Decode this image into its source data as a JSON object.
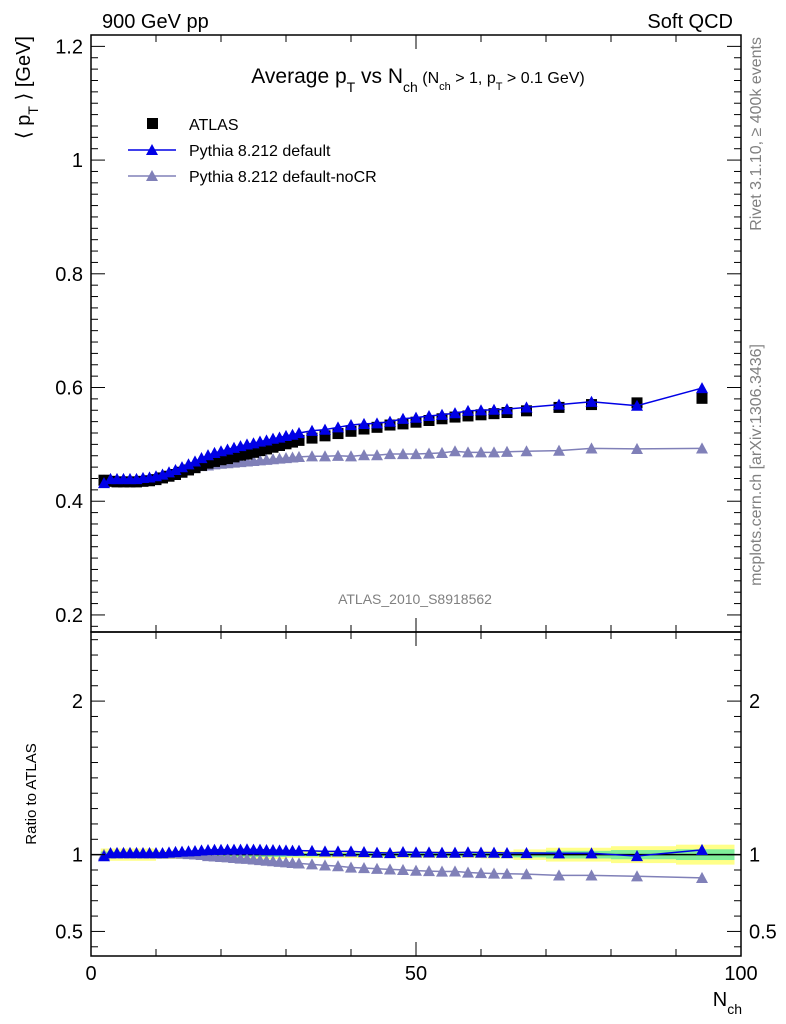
{
  "header": {
    "energy_label": "900 GeV pp",
    "process_label": "Soft QCD"
  },
  "side_labels": {
    "rivet": "Rivet 3.1.10, ≥ 400k events",
    "mcplots": "mcplots.cern.ch [arXiv:1306.3436]"
  },
  "colors": {
    "atlas": "#000000",
    "default": "#0000e6",
    "nocr": "#8080b8",
    "band_inner": "#80ee99",
    "band_outer": "#ffff88"
  },
  "chart_data": [
    {
      "type": "scatter",
      "title_parts": {
        "base": "Average p",
        "sub1": "T",
        "mid": " vs N",
        "sub2": "ch",
        "cond_a": " (N",
        "cond_sub_a": "ch",
        "cond_b": " > 1, p",
        "cond_sub_b": "T",
        "cond_c": " > 0.1 GeV)"
      },
      "ylabel": "⟨ p_T ⟩ [GeV]",
      "watermark": "ATLAS_2010_S8918562",
      "xlim": [
        0,
        100
      ],
      "ylim": [
        0.17,
        1.22
      ],
      "yticks": [
        0.2,
        0.4,
        0.6,
        0.8,
        1,
        1.2
      ],
      "ytick_labels": [
        "0.2",
        "0.4",
        "0.6",
        "0.8",
        "1",
        "1.2"
      ],
      "legend_position": "top-left",
      "series": [
        {
          "name": "ATLAS",
          "marker": "square",
          "x": [
            2,
            3,
            4,
            5,
            6,
            7,
            8,
            9,
            10,
            11,
            12,
            13,
            14,
            15,
            16,
            17,
            18,
            19,
            20,
            21,
            22,
            23,
            24,
            25,
            26,
            27,
            28,
            29,
            30,
            31,
            32,
            34,
            36,
            38,
            40,
            42,
            44,
            46,
            48,
            50,
            52,
            54,
            56,
            58,
            60,
            62,
            64,
            67,
            72,
            77,
            84,
            94
          ],
          "y": [
            0.437,
            0.435,
            0.434,
            0.434,
            0.434,
            0.434,
            0.435,
            0.436,
            0.438,
            0.441,
            0.444,
            0.447,
            0.451,
            0.455,
            0.459,
            0.463,
            0.467,
            0.47,
            0.473,
            0.475,
            0.478,
            0.481,
            0.483,
            0.486,
            0.489,
            0.492,
            0.495,
            0.498,
            0.501,
            0.504,
            0.507,
            0.511,
            0.515,
            0.519,
            0.523,
            0.527,
            0.53,
            0.534,
            0.536,
            0.539,
            0.542,
            0.545,
            0.548,
            0.55,
            0.552,
            0.554,
            0.556,
            0.559,
            0.565,
            0.57,
            0.573,
            0.581
          ]
        },
        {
          "name": "Pythia 8.212 default",
          "marker": "triangle",
          "x": [
            2,
            3,
            4,
            5,
            6,
            7,
            8,
            9,
            10,
            11,
            12,
            13,
            14,
            15,
            16,
            17,
            18,
            19,
            20,
            21,
            22,
            23,
            24,
            25,
            26,
            27,
            28,
            29,
            30,
            31,
            32,
            34,
            36,
            38,
            40,
            42,
            44,
            46,
            48,
            50,
            52,
            54,
            56,
            58,
            60,
            62,
            64,
            67,
            72,
            77,
            84,
            94
          ],
          "y": [
            0.432,
            0.439,
            0.439,
            0.439,
            0.439,
            0.439,
            0.441,
            0.442,
            0.444,
            0.447,
            0.451,
            0.455,
            0.46,
            0.465,
            0.47,
            0.476,
            0.481,
            0.485,
            0.488,
            0.491,
            0.494,
            0.497,
            0.5,
            0.502,
            0.505,
            0.507,
            0.51,
            0.512,
            0.515,
            0.517,
            0.52,
            0.524,
            0.526,
            0.53,
            0.534,
            0.536,
            0.537,
            0.54,
            0.545,
            0.547,
            0.55,
            0.552,
            0.555,
            0.559,
            0.56,
            0.561,
            0.562,
            0.565,
            0.57,
            0.575,
            0.568,
            0.599
          ]
        },
        {
          "name": "Pythia 8.212 default-noCR",
          "marker": "triangle",
          "x": [
            2,
            3,
            4,
            5,
            6,
            7,
            8,
            9,
            10,
            11,
            12,
            13,
            14,
            15,
            16,
            17,
            18,
            19,
            20,
            21,
            22,
            23,
            24,
            25,
            26,
            27,
            28,
            29,
            30,
            31,
            32,
            34,
            36,
            38,
            40,
            42,
            44,
            46,
            48,
            50,
            52,
            54,
            56,
            58,
            60,
            62,
            64,
            67,
            72,
            77,
            84,
            94
          ],
          "y": [
            0.437,
            0.439,
            0.439,
            0.439,
            0.439,
            0.439,
            0.44,
            0.441,
            0.443,
            0.445,
            0.448,
            0.451,
            0.454,
            0.457,
            0.46,
            0.462,
            0.463,
            0.465,
            0.466,
            0.467,
            0.468,
            0.469,
            0.47,
            0.471,
            0.472,
            0.473,
            0.474,
            0.475,
            0.476,
            0.477,
            0.478,
            0.479,
            0.479,
            0.48,
            0.479,
            0.481,
            0.481,
            0.483,
            0.483,
            0.483,
            0.484,
            0.485,
            0.488,
            0.486,
            0.486,
            0.486,
            0.487,
            0.488,
            0.489,
            0.493,
            0.492,
            0.493
          ]
        }
      ]
    },
    {
      "type": "scatter",
      "title": "",
      "ylabel": "Ratio to ATLAS",
      "xlabel": "N_ch",
      "xlim": [
        0,
        100
      ],
      "ylim": [
        0.34,
        2.45
      ],
      "yticks": [
        0.5,
        1,
        2
      ],
      "ytick_labels": [
        "0.5",
        "1",
        "2"
      ],
      "xticks": [
        0,
        50,
        100
      ],
      "xtick_labels": [
        "0",
        "50",
        "100"
      ],
      "reference_line": 1,
      "uncertainty_band": {
        "x_edges": [
          1.5,
          10,
          30,
          50,
          60,
          65,
          70,
          80,
          90,
          99
        ],
        "inner_half_width": [
          0.02,
          0.015,
          0.012,
          0.012,
          0.013,
          0.018,
          0.025,
          0.03,
          0.035
        ],
        "outer_half_width": [
          0.04,
          0.028,
          0.022,
          0.022,
          0.025,
          0.034,
          0.045,
          0.055,
          0.065
        ]
      },
      "series": [
        {
          "name": "Pythia 8.212 default",
          "x": [
            2,
            3,
            4,
            5,
            6,
            7,
            8,
            9,
            10,
            11,
            12,
            13,
            14,
            15,
            16,
            17,
            18,
            19,
            20,
            21,
            22,
            23,
            24,
            25,
            26,
            27,
            28,
            29,
            30,
            31,
            32,
            34,
            36,
            38,
            40,
            42,
            44,
            46,
            48,
            50,
            52,
            54,
            56,
            58,
            60,
            62,
            64,
            67,
            72,
            77,
            84,
            94
          ],
          "y": [
            0.99,
            1.01,
            1.01,
            1.01,
            1.01,
            1.01,
            1.01,
            1.01,
            1.01,
            1.01,
            1.015,
            1.018,
            1.02,
            1.022,
            1.024,
            1.028,
            1.03,
            1.032,
            1.032,
            1.033,
            1.033,
            1.033,
            1.035,
            1.033,
            1.033,
            1.03,
            1.03,
            1.028,
            1.028,
            1.026,
            1.026,
            1.025,
            1.021,
            1.021,
            1.021,
            1.017,
            1.013,
            1.011,
            1.017,
            1.015,
            1.015,
            1.013,
            1.013,
            1.016,
            1.014,
            1.013,
            1.011,
            1.011,
            1.009,
            1.009,
            0.991,
            1.031
          ]
        },
        {
          "name": "Pythia 8.212 default-noCR",
          "x": [
            2,
            3,
            4,
            5,
            6,
            7,
            8,
            9,
            10,
            11,
            12,
            13,
            14,
            15,
            16,
            17,
            18,
            19,
            20,
            21,
            22,
            23,
            24,
            25,
            26,
            27,
            28,
            29,
            30,
            31,
            32,
            34,
            36,
            38,
            40,
            42,
            44,
            46,
            48,
            50,
            52,
            54,
            56,
            58,
            60,
            62,
            64,
            67,
            72,
            77,
            84,
            94
          ],
          "y": [
            1.0,
            1.009,
            1.012,
            1.012,
            1.012,
            1.012,
            1.011,
            1.011,
            1.011,
            1.009,
            1.009,
            1.009,
            1.007,
            1.004,
            1.002,
            0.998,
            0.991,
            0.989,
            0.985,
            0.983,
            0.979,
            0.975,
            0.973,
            0.969,
            0.965,
            0.961,
            0.958,
            0.954,
            0.95,
            0.946,
            0.943,
            0.937,
            0.93,
            0.925,
            0.916,
            0.913,
            0.908,
            0.904,
            0.901,
            0.896,
            0.893,
            0.89,
            0.891,
            0.884,
            0.88,
            0.877,
            0.876,
            0.873,
            0.865,
            0.865,
            0.859,
            0.849
          ]
        }
      ]
    }
  ]
}
